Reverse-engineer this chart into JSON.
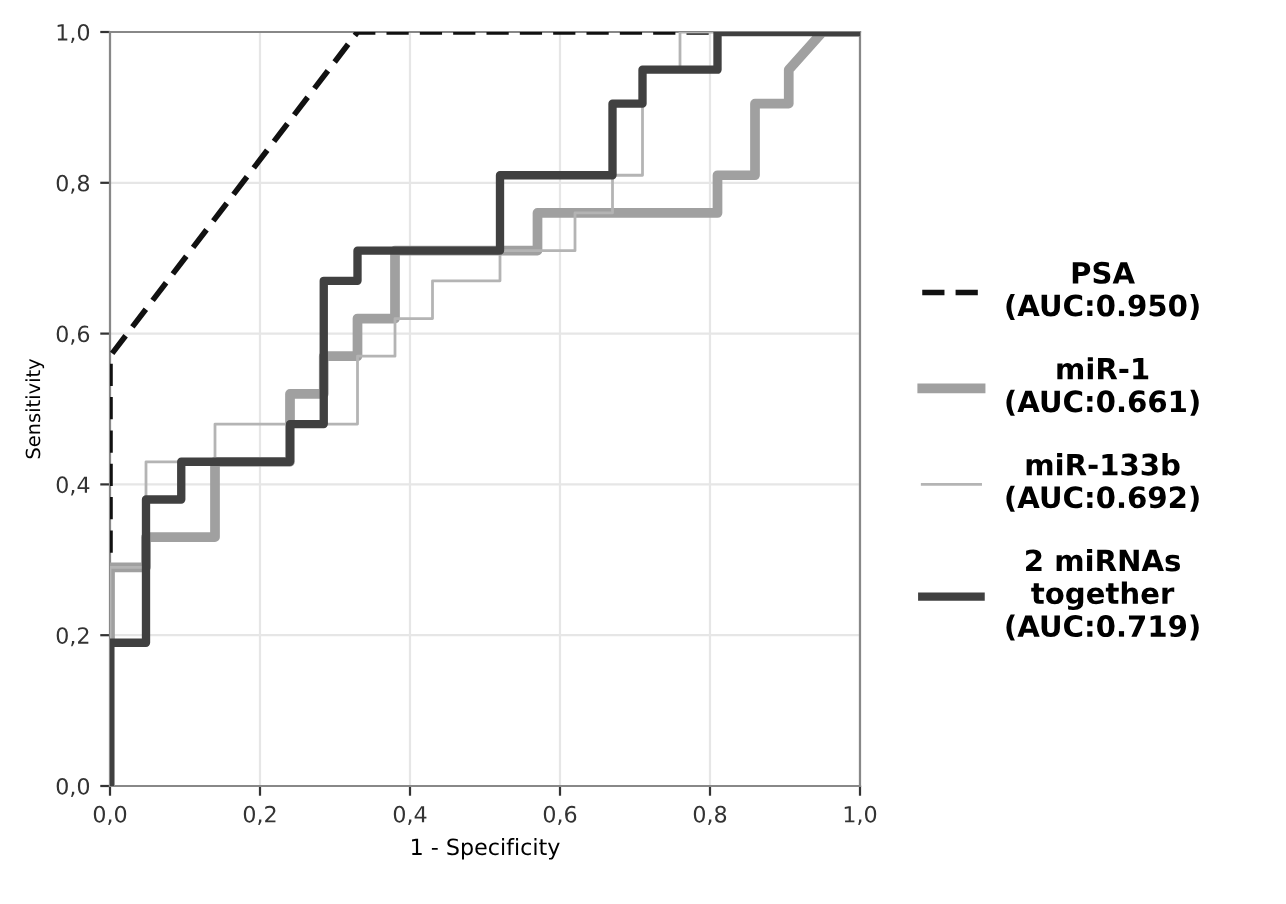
{
  "chart_data": {
    "type": "line",
    "xlabel": "1 - Specificity",
    "ylabel": "Sensitivity",
    "xlim": [
      0,
      1
    ],
    "ylim": [
      0,
      1
    ],
    "xticks": [
      {
        "value": 0,
        "label": "0,0"
      },
      {
        "value": 0.2,
        "label": "0,2"
      },
      {
        "value": 0.4,
        "label": "0,4"
      },
      {
        "value": 0.6,
        "label": "0,6"
      },
      {
        "value": 0.8,
        "label": "0,8"
      },
      {
        "value": 1,
        "label": "1,0"
      }
    ],
    "yticks": [
      {
        "value": 0,
        "label": "0,0"
      },
      {
        "value": 0.2,
        "label": "0,2"
      },
      {
        "value": 0.4,
        "label": "0,4"
      },
      {
        "value": 0.6,
        "label": "0,6"
      },
      {
        "value": 0.8,
        "label": "0,8"
      },
      {
        "value": 1,
        "label": "1,0"
      }
    ],
    "grid": true,
    "legend": "right",
    "marker": "none",
    "series": [
      {
        "name": "PSA\n(AUC:0.950)",
        "color": "#111111",
        "line_style": "dashed",
        "x": [
          0,
          0,
          0.33,
          1
        ],
        "values": [
          0,
          0.57,
          1,
          1
        ]
      },
      {
        "name": "miR-1\n(AUC:0.661)",
        "color": "#a0a0a0",
        "line_style": "solid",
        "x": [
          0,
          0,
          0.048,
          0.048,
          0.14,
          0.14,
          0.24,
          0.24,
          0.285,
          0.285,
          0.33,
          0.33,
          0.38,
          0.38,
          0.57,
          0.57,
          0.81,
          0.81,
          0.86,
          0.86,
          0.905,
          0.905,
          0.95,
          1
        ],
        "values": [
          0,
          0.29,
          0.29,
          0.33,
          0.33,
          0.43,
          0.43,
          0.52,
          0.52,
          0.57,
          0.57,
          0.62,
          0.62,
          0.71,
          0.71,
          0.76,
          0.76,
          0.81,
          0.81,
          0.905,
          0.905,
          0.95,
          1,
          1
        ]
      },
      {
        "name": "miR-133b\n(AUC:0.692)",
        "color": "#b4b4b4",
        "line_style": "solid",
        "x": [
          0,
          0,
          0.048,
          0.048,
          0.14,
          0.14,
          0.33,
          0.33,
          0.38,
          0.38,
          0.43,
          0.43,
          0.52,
          0.52,
          0.62,
          0.62,
          0.67,
          0.67,
          0.71,
          0.71,
          0.76,
          0.76,
          1
        ],
        "values": [
          0,
          0.29,
          0.29,
          0.43,
          0.43,
          0.48,
          0.48,
          0.57,
          0.57,
          0.62,
          0.62,
          0.67,
          0.67,
          0.71,
          0.71,
          0.76,
          0.76,
          0.81,
          0.81,
          0.95,
          0.95,
          1,
          1
        ]
      },
      {
        "name": "2 miRNAs\ntogether\n(AUC:0.719)",
        "color": "#404040",
        "line_style": "solid",
        "x": [
          0,
          0,
          0.048,
          0.048,
          0.095,
          0.095,
          0.24,
          0.24,
          0.285,
          0.285,
          0.33,
          0.33,
          0.52,
          0.52,
          0.67,
          0.67,
          0.71,
          0.71,
          0.81,
          0.81,
          1
        ],
        "values": [
          0,
          0.19,
          0.19,
          0.38,
          0.38,
          0.43,
          0.43,
          0.48,
          0.48,
          0.67,
          0.67,
          0.71,
          0.71,
          0.81,
          0.81,
          0.905,
          0.905,
          0.95,
          0.95,
          1,
          1
        ]
      }
    ]
  }
}
